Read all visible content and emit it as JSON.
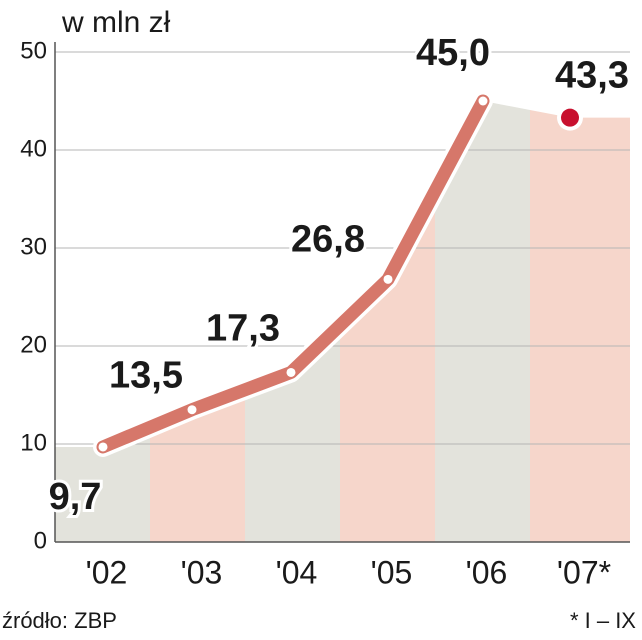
{
  "chart_data": {
    "type": "line",
    "title": "w mln zł",
    "categories": [
      "'02",
      "'03",
      "'04",
      "'05",
      "'06",
      "'07*"
    ],
    "values": [
      9.7,
      13.5,
      17.3,
      26.8,
      45.0,
      43.3
    ],
    "value_labels": [
      "9,7",
      "13,5",
      "17,3",
      "26,8",
      "45,0",
      "43,3"
    ],
    "color": "#d6776a",
    "band_colors": [
      "#e3e3dc",
      "#f6d6cb"
    ],
    "highlight_index": 5,
    "highlight_color": "#c8102e",
    "ylim": [
      0,
      50
    ],
    "yticks": [
      0,
      10,
      20,
      30,
      40,
      50
    ],
    "grid": true,
    "source": "źródło: ZBP",
    "footnote": "* I – IX"
  }
}
